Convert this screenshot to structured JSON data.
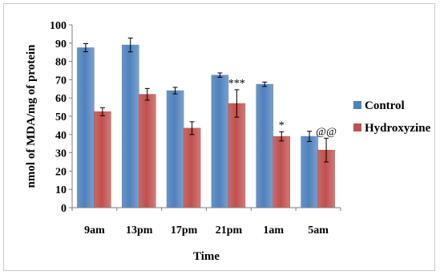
{
  "chart_data": {
    "type": "bar",
    "categories": [
      "9am",
      "13pm",
      "17pm",
      "21pm",
      "1am",
      "5am"
    ],
    "series": [
      {
        "name": "Control",
        "values": [
          87.5,
          89,
          64,
          72.5,
          67.5,
          39
        ],
        "errors": [
          2.2,
          3.8,
          1.8,
          1.2,
          1.2,
          2.8
        ],
        "color": "#4f81bd"
      },
      {
        "name": "Hydroxyzine",
        "values": [
          52.5,
          62,
          43.5,
          57,
          39,
          31.5
        ],
        "errors": [
          2.2,
          3.2,
          3.5,
          7.5,
          2.5,
          6.5
        ],
        "color": "#c0504d"
      }
    ],
    "annotations": [
      {
        "series": 1,
        "category": 3,
        "text": "***"
      },
      {
        "series": 1,
        "category": 4,
        "text": "*"
      },
      {
        "series": 1,
        "category": 5,
        "text": "@@"
      }
    ],
    "xlabel": "Time",
    "ylabel": "nmol of MDA/mg of protein",
    "ylim": [
      0,
      100
    ],
    "yticks": [
      0,
      10,
      20,
      30,
      40,
      50,
      60,
      70,
      80,
      90,
      100
    ],
    "grid": false,
    "legend_position": "right"
  }
}
